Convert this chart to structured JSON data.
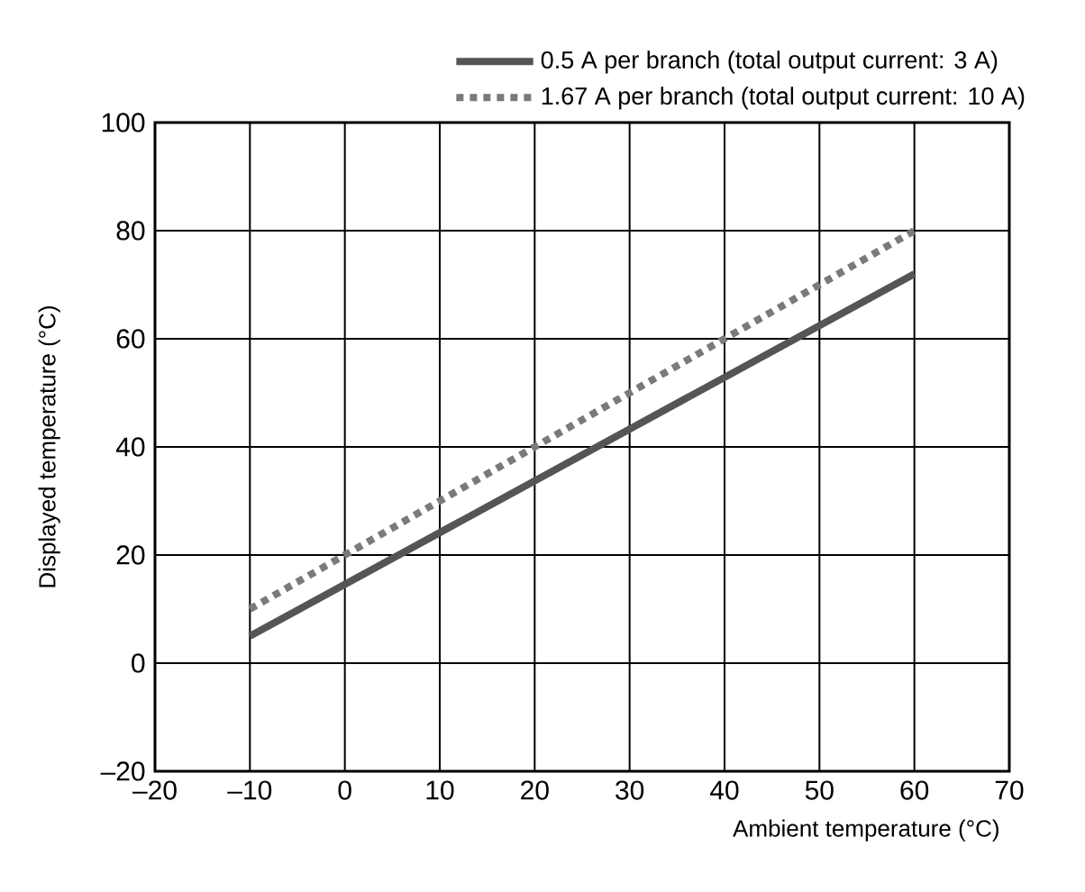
{
  "chart_data": {
    "type": "line",
    "xlabel": "Ambient temperature (°C)",
    "ylabel": "Displayed temperature (°C)",
    "x": [
      -10,
      60
    ],
    "series": [
      {
        "name": "0.5 A per branch (total output current: 3 A)",
        "color": "#555555",
        "line_style": "solid",
        "values": [
          5,
          72
        ]
      },
      {
        "name": "1.67 A per branch (total output current: 10 A)",
        "color": "#7a7a7a",
        "line_style": "dotted",
        "values": [
          10,
          80
        ]
      }
    ],
    "xlim": [
      -20,
      70
    ],
    "ylim": [
      -20,
      100
    ],
    "xticks": [
      {
        "value": -20,
        "label": "–20"
      },
      {
        "value": -10,
        "label": "–10"
      },
      0,
      10,
      20,
      30,
      40,
      50,
      60,
      70
    ],
    "yticks": [
      {
        "value": -20,
        "label": "–20"
      },
      0,
      20,
      40,
      60,
      80,
      100
    ],
    "grid": true,
    "legend": "top right"
  }
}
